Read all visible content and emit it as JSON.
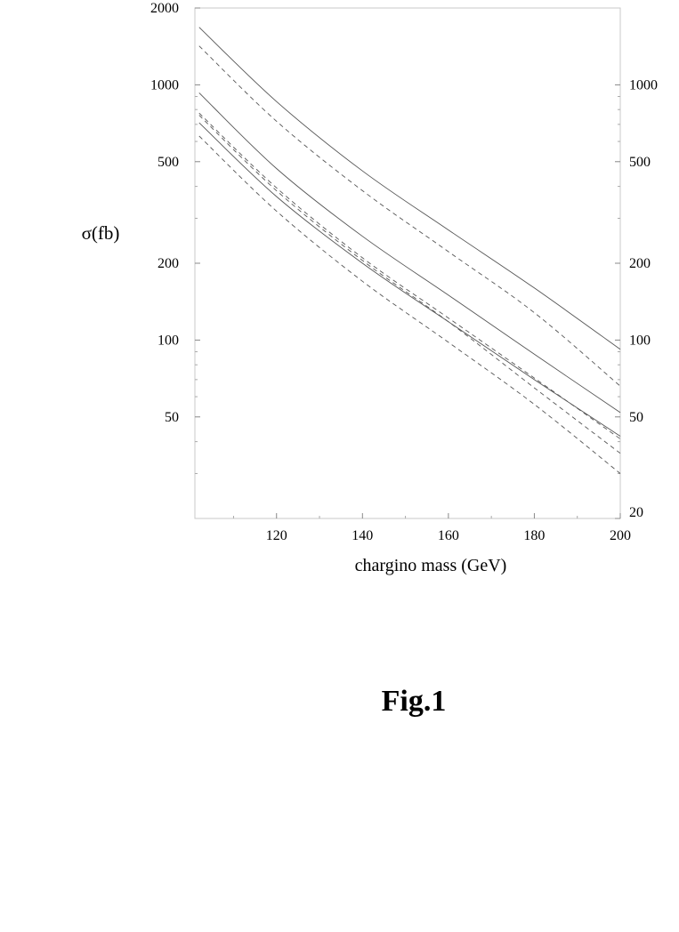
{
  "figure_caption": "Fig.1",
  "chart_data": {
    "type": "line",
    "title": "",
    "xlabel": "chargino mass (GeV)",
    "ylabel": "σ(fb)",
    "xlim": [
      101,
      200
    ],
    "ylim": [
      20,
      2000
    ],
    "y_scale": "log",
    "x_ticks": [
      120,
      140,
      160,
      180,
      200
    ],
    "y_ticks_left": [
      50,
      100,
      200,
      500,
      1000,
      2000
    ],
    "y_ticks_right": [
      20,
      50,
      100,
      200,
      500,
      1000
    ],
    "grid": false,
    "legend": "none",
    "line_color": "#555555",
    "series": [
      {
        "style": "solid",
        "x": [
          102,
          120,
          140,
          160,
          180,
          200
        ],
        "y": [
          1680,
          860,
          460,
          270,
          160,
          92
        ]
      },
      {
        "style": "dashed",
        "x": [
          102,
          120,
          140,
          160,
          180,
          200
        ],
        "y": [
          1420,
          720,
          385,
          222,
          128,
          66
        ]
      },
      {
        "style": "solid",
        "x": [
          102,
          120,
          140,
          160,
          180,
          200
        ],
        "y": [
          930,
          470,
          255,
          150,
          88,
          52
        ]
      },
      {
        "style": "dashed",
        "x": [
          102,
          120,
          140,
          160,
          180,
          200
        ],
        "y": [
          775,
          395,
          210,
          122,
          71,
          41
        ]
      },
      {
        "style": "solid",
        "x": [
          102,
          120,
          140,
          160,
          180,
          200
        ],
        "y": [
          710,
          365,
          200,
          118,
          70,
          42
        ]
      },
      {
        "style": "dashed",
        "x": [
          102,
          120,
          140,
          160,
          180,
          200
        ],
        "y": [
          760,
          385,
          205,
          118,
          65,
          36
        ]
      },
      {
        "style": "dashed",
        "x": [
          102,
          120,
          140,
          160,
          180,
          200
        ],
        "y": [
          630,
          320,
          170,
          98,
          56,
          30
        ]
      }
    ]
  }
}
